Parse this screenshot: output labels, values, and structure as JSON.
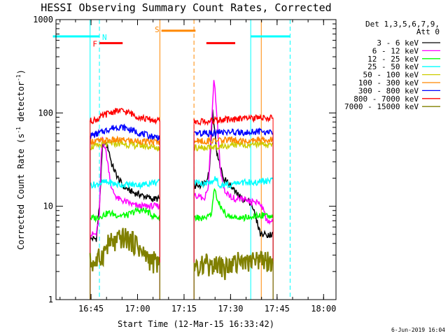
{
  "chart_data": {
    "type": "line",
    "title": "HESSI Observing Summary Count Rates, Corrected",
    "xlabel": "Start Time (12-Mar-15 16:33:42)",
    "ylabel_parts": [
      "Corrected Count Rate (s",
      "-1",
      " detector",
      "-1",
      ")"
    ],
    "ylabel": "Corrected Count Rate (s-1 detector-1)",
    "yscale": "log",
    "xlim_min": [
      0,
      90.3
    ],
    "ylim": [
      1,
      1000
    ],
    "x_tick_labels": [
      "16:45",
      "17:00",
      "17:15",
      "17:30",
      "17:45",
      "18:00"
    ],
    "x_tick_min": [
      11.3,
      26.3,
      41.3,
      56.3,
      71.3,
      86.3
    ],
    "y_tick_labels": [
      "1",
      "10",
      "100",
      "1000"
    ],
    "y_tick_values": [
      1,
      10,
      100,
      1000
    ],
    "legend_header": [
      "Det 1,3,5,6,7,9,",
      "Att 0"
    ],
    "legend_position": "top-right outside",
    "date_stamp": "6-Jun-2019 16:04",
    "segments_min": [
      [
        11,
        33.5
      ],
      [
        44.5,
        70
      ]
    ],
    "series": [
      {
        "name": "3 - 6 keV",
        "color": "#000000",
        "x": [
          11,
          12,
          13,
          14,
          15,
          16,
          17,
          18,
          20,
          22,
          25,
          28,
          31,
          33.5,
          44.5,
          45.5,
          46.5,
          48,
          49.5,
          50.5,
          52,
          54,
          56,
          58,
          60,
          63,
          66,
          70
        ],
        "y": [
          4.5,
          4.5,
          4.5,
          10,
          45,
          48,
          40,
          28,
          20,
          16,
          14,
          13,
          12,
          12,
          16,
          17,
          17,
          18,
          24,
          110,
          35,
          20,
          17,
          14,
          12,
          11,
          5,
          5
        ]
      },
      {
        "name": "6 - 12 keV",
        "color": "#ff00ff",
        "x": [
          11,
          12,
          13,
          14,
          14.5,
          15,
          16,
          17,
          18,
          20,
          23,
          26,
          29,
          31,
          33.5,
          44.5,
          46,
          47.5,
          49,
          50,
          51,
          52,
          53,
          54,
          56,
          58,
          60,
          63,
          66,
          68,
          70
        ],
        "y": [
          5,
          5,
          5,
          8,
          30,
          55,
          40,
          25,
          15,
          12,
          11,
          10,
          10,
          10,
          10,
          13,
          13,
          12,
          14,
          60,
          240,
          80,
          25,
          15,
          13,
          12,
          12,
          11,
          11,
          7,
          7
        ]
      },
      {
        "name": "12 - 25 keV",
        "color": "#00ff00",
        "x": [
          11,
          13,
          15,
          17,
          20,
          23,
          26,
          29,
          31,
          33.5,
          44.5,
          46,
          48,
          50,
          51,
          53,
          55,
          58,
          62,
          66,
          70
        ],
        "y": [
          7.5,
          7.5,
          8,
          8.5,
          8,
          8,
          9,
          9,
          8,
          7.5,
          7.5,
          7.5,
          7.5,
          8,
          15,
          10,
          8,
          7.5,
          7.5,
          8,
          8
        ]
      },
      {
        "name": "25 - 50 keV",
        "color": "#00ffff",
        "x": [
          11,
          13,
          15,
          17,
          20,
          24,
          28,
          31,
          33.5,
          44.5,
          47,
          50,
          51,
          53,
          56,
          60,
          64,
          70
        ],
        "y": [
          17,
          17,
          18,
          18,
          17,
          17,
          17,
          18,
          18,
          18,
          17,
          18,
          20,
          17,
          17,
          18,
          18,
          19
        ]
      },
      {
        "name": "50 - 100 keV",
        "color": "#cccc00",
        "x": [
          11,
          13,
          15,
          17,
          19,
          21,
          23,
          25,
          27,
          29,
          31,
          33.5,
          44.5,
          47,
          50,
          53,
          56,
          60,
          63,
          66,
          70
        ],
        "y": [
          43,
          44,
          46,
          47,
          47,
          47,
          46,
          45,
          45,
          44,
          43,
          42,
          42,
          42,
          43,
          44,
          45,
          46,
          46,
          45,
          45
        ]
      },
      {
        "name": "100 - 300 keV",
        "color": "#ff8800",
        "x": [
          11,
          13,
          15,
          17,
          19,
          21,
          23,
          25,
          27,
          29,
          31,
          33.5,
          44.5,
          47,
          50,
          53,
          56,
          60,
          63,
          66,
          70
        ],
        "y": [
          50,
          50,
          50,
          51,
          51,
          51,
          51,
          50,
          50,
          49,
          49,
          49,
          50,
          50,
          50,
          51,
          51,
          51,
          52,
          52,
          52
        ]
      },
      {
        "name": "300 - 800 keV",
        "color": "#0000ff",
        "x": [
          11,
          13,
          15,
          17,
          19,
          21,
          23,
          25,
          27,
          29,
          31,
          33.5,
          44.5,
          47,
          50,
          53,
          56,
          60,
          63,
          66,
          70
        ],
        "y": [
          57,
          59,
          63,
          67,
          70,
          71,
          68,
          64,
          61,
          58,
          56,
          55,
          59,
          60,
          61,
          62,
          62,
          62,
          63,
          63,
          63
        ]
      },
      {
        "name": "800 - 7000 keV",
        "color": "#ff0000",
        "x": [
          11,
          13,
          15,
          17,
          19,
          21,
          23,
          25,
          27,
          29,
          31,
          33.5,
          44.5,
          47,
          50,
          53,
          56,
          60,
          63,
          66,
          70
        ],
        "y": [
          82,
          85,
          92,
          100,
          104,
          105,
          102,
          96,
          90,
          86,
          84,
          82,
          80,
          81,
          82,
          84,
          85,
          86,
          87,
          88,
          89
        ]
      },
      {
        "name": "7000 - 15000 keV",
        "color": "#808000",
        "x": [
          11,
          13,
          15,
          16,
          17,
          19,
          21,
          23,
          25,
          26,
          27,
          28,
          29,
          31,
          33.5,
          44.5,
          46,
          48,
          50,
          52,
          54,
          56,
          58,
          60,
          62,
          64,
          66,
          68,
          70
        ],
        "y": [
          2.5,
          2.5,
          3,
          3.5,
          4,
          4,
          4.5,
          4.5,
          4,
          4,
          3.5,
          3,
          3,
          2.5,
          2.5,
          2.5,
          2,
          2.5,
          2,
          2.5,
          2,
          2.5,
          2.5,
          2.5,
          2.5,
          2.5,
          2.5,
          2.5,
          2.5
        ]
      }
    ],
    "flags": [
      {
        "label": "N",
        "color": "#00ffff",
        "min": [
          -1,
          14
        ],
        "level": 660
      },
      {
        "label": "F",
        "color": "#ff0000",
        "min": [
          14,
          21.5
        ],
        "level": 560
      },
      {
        "label": "S",
        "color": "#ff8800",
        "min": [
          34,
          45
        ],
        "level": 760
      },
      {
        "label": "",
        "color": "#ff0000",
        "min": [
          48.5,
          57.8
        ],
        "level": 560
      },
      {
        "label": "",
        "color": "#00ffff",
        "min": [
          62.8,
          75.5
        ],
        "level": 660
      }
    ],
    "vlines": [
      {
        "min": 0,
        "color": "#00ffff",
        "style": "solid"
      },
      {
        "min": 11,
        "color": "#00ffff",
        "style": "solid"
      },
      {
        "min": 14,
        "color": "#00ffff",
        "style": "dashed"
      },
      {
        "min": 33.5,
        "color": "#ff8800",
        "style": "solid"
      },
      {
        "min": 44.5,
        "color": "#ff8800",
        "style": "dashed"
      },
      {
        "min": 62.8,
        "color": "#00ffff",
        "style": "solid"
      },
      {
        "min": 66.2,
        "color": "#ff8800",
        "style": "solid"
      },
      {
        "min": 75.5,
        "color": "#00ffff",
        "style": "dashed"
      }
    ]
  }
}
